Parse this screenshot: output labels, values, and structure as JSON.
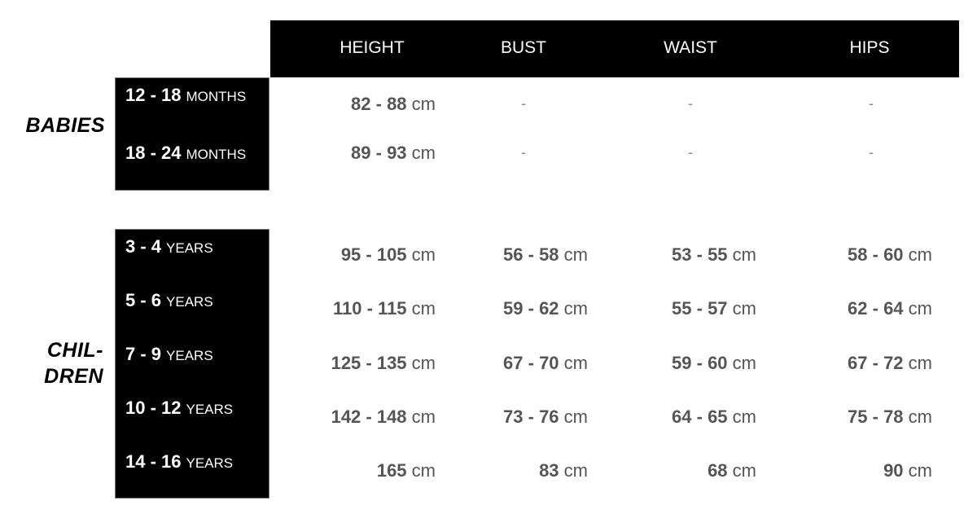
{
  "columns": [
    "HEIGHT",
    "BUST",
    "WAIST",
    "HIPS"
  ],
  "unit": "cm",
  "groups": [
    {
      "name": "BABIES",
      "rows": [
        {
          "range": "12 - 18",
          "unit_label": "MONTHS",
          "values": [
            "82 - 88",
            "-",
            "-",
            "-"
          ]
        },
        {
          "range": "18 - 24",
          "unit_label": "MONTHS",
          "values": [
            "89 - 93",
            "-",
            "-",
            "-"
          ]
        }
      ]
    },
    {
      "name_line1": "CHIL-",
      "name_line2": "DREN",
      "rows": [
        {
          "range": "3 - 4",
          "unit_label": "YEARS",
          "values": [
            "95 - 105",
            "56 - 58",
            "53 - 55",
            "58 - 60"
          ]
        },
        {
          "range": "5 - 6",
          "unit_label": "YEARS",
          "values": [
            "110 - 115",
            "59 - 62",
            "55 - 57",
            "62 - 64"
          ]
        },
        {
          "range": "7 - 9",
          "unit_label": "YEARS",
          "values": [
            "125 - 135",
            "67 - 70",
            "59 - 60",
            "67 - 72"
          ]
        },
        {
          "range": "10 - 12",
          "unit_label": "YEARS",
          "values": [
            "142 - 148",
            "73 - 76",
            "64 - 65",
            "75 - 78"
          ]
        },
        {
          "range": "14 - 16",
          "unit_label": "YEARS",
          "values": [
            "165",
            "83",
            "68",
            "90"
          ]
        }
      ]
    }
  ]
}
